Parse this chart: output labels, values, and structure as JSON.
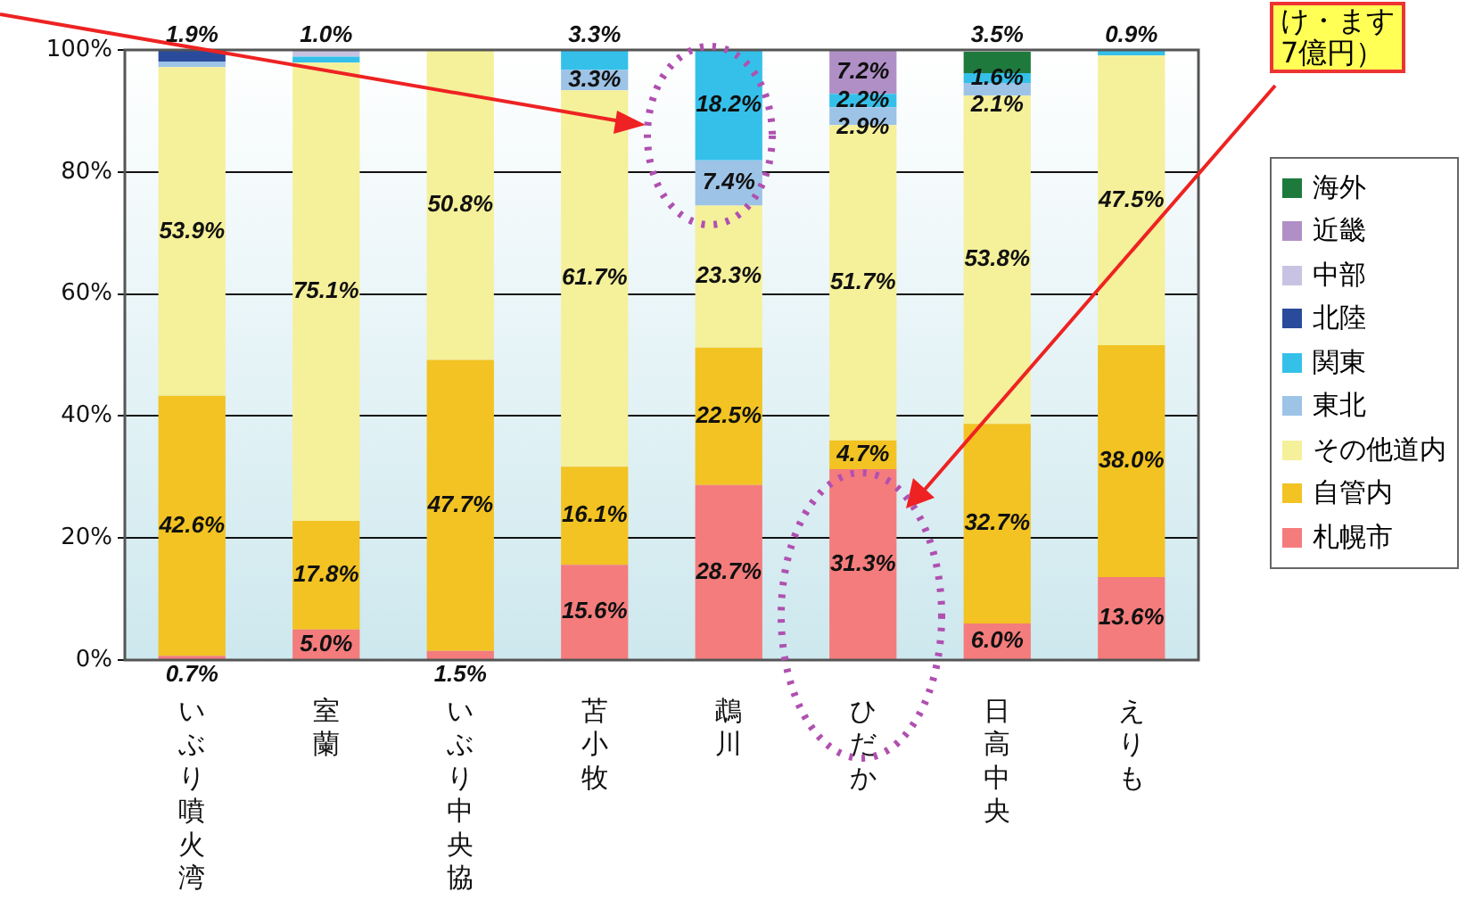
{
  "chart_data": {
    "type": "bar",
    "stacked": true,
    "categories": [
      "いぶり噴火湾",
      "室蘭",
      "いぶり中央協",
      "苫小牧",
      "鵡川",
      "ひだか",
      "日高中央",
      "えりも"
    ],
    "series": [
      {
        "name": "札幌市",
        "color": "#f47c7c",
        "values": [
          0.7,
          5.0,
          1.5,
          15.6,
          28.7,
          31.3,
          6.0,
          13.6
        ],
        "value_labels": [
          "0.7%",
          "5.0%",
          "1.5%",
          "15.6%",
          "28.7%",
          "31.3%",
          "6.0%",
          "13.6%"
        ]
      },
      {
        "name": "自管内",
        "color": "#f2c322",
        "values": [
          42.6,
          17.8,
          47.7,
          16.1,
          22.5,
          4.7,
          32.7,
          38.0
        ],
        "value_labels": [
          "42.6%",
          "17.8%",
          "47.7%",
          "16.1%",
          "22.5%",
          "4.7%",
          "32.7%",
          "38.0%"
        ]
      },
      {
        "name": "その他道内",
        "color": "#f5f09a",
        "values": [
          53.9,
          75.1,
          50.8,
          61.7,
          23.3,
          51.7,
          53.8,
          47.5
        ],
        "value_labels": [
          "53.9%",
          "75.1%",
          "50.8%",
          "61.7%",
          "23.3%",
          "51.7%",
          "53.8%",
          "47.5%"
        ]
      },
      {
        "name": "東北",
        "color": "#9dc3e6",
        "values": [
          0.9,
          null,
          null,
          3.3,
          7.4,
          2.9,
          2.1,
          null
        ],
        "value_labels": [
          null,
          null,
          null,
          "3.3%",
          "7.4%",
          "2.9%",
          "2.1%",
          null
        ]
      },
      {
        "name": "関東",
        "color": "#35c0ea",
        "values": [
          null,
          1.0,
          null,
          3.3,
          18.2,
          2.2,
          1.6,
          0.9
        ],
        "value_labels": [
          null,
          "1.0%",
          null,
          "3.3%",
          "18.2%",
          "2.2%",
          "1.6%",
          "0.9%"
        ]
      },
      {
        "name": "北陸",
        "color": "#2a4b9b",
        "values": [
          1.9,
          null,
          null,
          null,
          null,
          null,
          null,
          null
        ],
        "value_labels": [
          "1.9%",
          null,
          null,
          null,
          null,
          null,
          null,
          null
        ]
      },
      {
        "name": "中部",
        "color": "#c9c3e3",
        "values": [
          null,
          1.1,
          null,
          null,
          null,
          null,
          null,
          null
        ],
        "value_labels": [
          null,
          null,
          null,
          null,
          null,
          null,
          null,
          null
        ]
      },
      {
        "name": "近畿",
        "color": "#b08fc7",
        "values": [
          null,
          null,
          null,
          null,
          null,
          7.2,
          null,
          null
        ],
        "value_labels": [
          null,
          null,
          null,
          null,
          null,
          "7.2%",
          null,
          null
        ]
      },
      {
        "name": "海外",
        "color": "#1e7a3c",
        "values": [
          null,
          null,
          null,
          null,
          null,
          null,
          3.5,
          null
        ],
        "value_labels": [
          null,
          null,
          null,
          null,
          null,
          null,
          "3.5%",
          null
        ]
      }
    ],
    "ylim": [
      0,
      100
    ],
    "yticks": [
      {
        "value": 0,
        "label": "0%"
      },
      {
        "value": 20,
        "label": "20%"
      },
      {
        "value": 40,
        "label": "40%"
      },
      {
        "value": 60,
        "label": "60%"
      },
      {
        "value": 80,
        "label": "80%"
      },
      {
        "value": 100,
        "label": "100%"
      }
    ],
    "grid": "y",
    "legend": "right",
    "annotations": [
      "け・ます\n7億円）"
    ]
  }
}
